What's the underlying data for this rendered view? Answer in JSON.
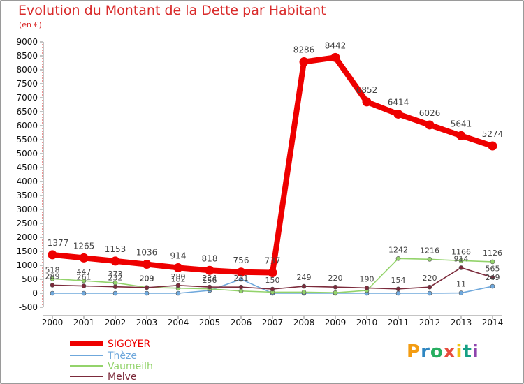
{
  "header": {
    "title": "Evolution du Montant de la Dette par Habitant",
    "unit": "(en €)"
  },
  "logo": {
    "text": "Proxiti",
    "colors": [
      "#f39c12",
      "#2e86c1",
      "#27ae60",
      "#e74c3c",
      "#f1c40f",
      "#16a085",
      "#8e44ad"
    ]
  },
  "chart_data": {
    "type": "line",
    "title": "Evolution du Montant de la Dette par Habitant",
    "subtitle": "(en €)",
    "x": [
      "2000",
      "2001",
      "2002",
      "2003",
      "2004",
      "2005",
      "2006",
      "2007",
      "2008",
      "2009",
      "2010",
      "2011",
      "2012",
      "2013",
      "2014"
    ],
    "ylim": [
      -500,
      9000
    ],
    "yticks": [
      -500,
      0,
      500,
      1000,
      1500,
      2000,
      2500,
      3000,
      3500,
      4000,
      4500,
      5000,
      5500,
      6000,
      6500,
      7000,
      7500,
      8000,
      8500,
      9000
    ],
    "grid": false,
    "legend": "bottom-left",
    "series": [
      {
        "name": "SIGOYER",
        "color": "#ee0000",
        "values": [
          1377,
          1265,
          1153,
          1036,
          914,
          818,
          756,
          737,
          8286,
          8442,
          6852,
          6414,
          6026,
          5641,
          5274
        ],
        "labels": [
          "1377",
          "1265",
          "1153",
          "1036",
          "914",
          "818",
          "756",
          "737",
          "8286",
          "8442",
          "6852",
          "6414",
          "6026",
          "5641",
          "5274"
        ]
      },
      {
        "name": "Thèze",
        "color": "#6fa8dc",
        "values": [
          0,
          0,
          0,
          0,
          0,
          100,
          500,
          0,
          0,
          0,
          0,
          0,
          0,
          11,
          249
        ],
        "labels": [
          "",
          "",
          "",
          "",
          "",
          "",
          "",
          "",
          "",
          "",
          "",
          "",
          "",
          "11",
          "249"
        ]
      },
      {
        "name": "Vaumeilh",
        "color": "#93d36b",
        "values": [
          518,
          447,
          373,
          209,
          182,
          156,
          80,
          40,
          40,
          20,
          100,
          1242,
          1216,
          1166,
          1126
        ],
        "labels": [
          "518",
          "447",
          "373",
          "209",
          "182",
          "156",
          "",
          "",
          "",
          "",
          "",
          "1242",
          "1216",
          "1166",
          "1126"
        ]
      },
      {
        "name": "Melve",
        "color": "#7b2a3b",
        "values": [
          289,
          261,
          232,
          203,
          280,
          224,
          221,
          150,
          249,
          220,
          190,
          154,
          220,
          914,
          565
        ],
        "labels": [
          "289",
          "261",
          "232",
          "203",
          "280",
          "224",
          "221",
          "150",
          "249",
          "220",
          "190",
          "154",
          "220",
          "914",
          "565"
        ]
      }
    ]
  }
}
